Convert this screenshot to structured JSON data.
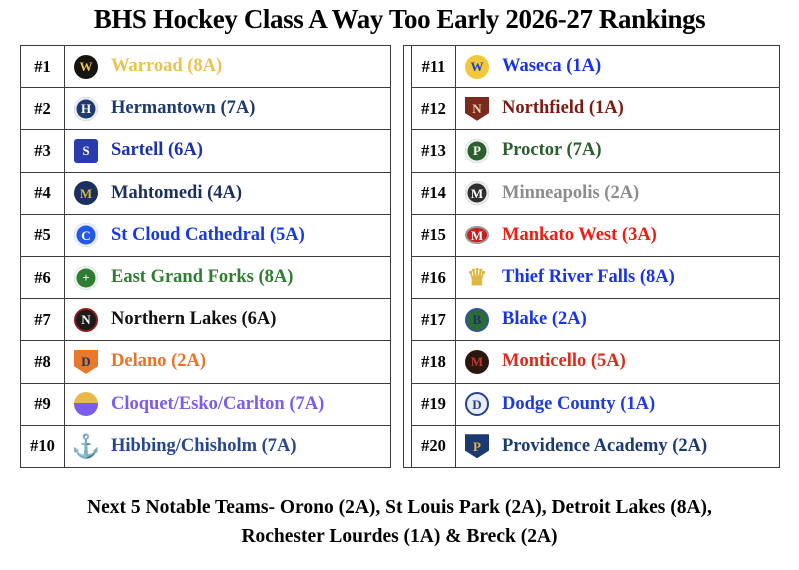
{
  "title": "BHS Hockey Class A Way Too Early 2026-27 Rankings",
  "footer": {
    "line1": "Next 5 Notable Teams- Orono (2A), St Louis Park (2A), Detroit Lakes (8A),",
    "line2": "Rochester Lourdes (1A) & Breck (2A)"
  },
  "colors": {
    "table_border": "#3d3d3d",
    "background": "#ffffff",
    "rank_text": "#000000"
  },
  "rankings": {
    "left": [
      {
        "rank": "#1",
        "team": "Warroad (8A)",
        "color": "#ECC24E",
        "logo": {
          "name": "warroad-warrior-logo",
          "shape": "circle",
          "bg": "#171310",
          "fg": "#ECC24E",
          "text": "W"
        }
      },
      {
        "rank": "#2",
        "team": "Hermantown (7A)",
        "color": "#1E3A6E",
        "logo": {
          "name": "hermantown-hawks-logo",
          "shape": "circle",
          "bg": "#1E3A6E",
          "fg": "#ffffff",
          "text": "H",
          "ring": true
        }
      },
      {
        "rank": "#3",
        "team": "Sartell (6A)",
        "color": "#1B2FB5",
        "logo": {
          "name": "sartell-sabres-logo",
          "shape": "square",
          "bg": "#2A3BAE",
          "fg": "#ffffff",
          "text": "S"
        }
      },
      {
        "rank": "#4",
        "team": "Mahtomedi (4A)",
        "color": "#1B305E",
        "logo": {
          "name": "mahtomedi-zephyrs-logo",
          "shape": "circle",
          "bg": "#1B305E",
          "fg": "#D8B44A",
          "text": "M"
        }
      },
      {
        "rank": "#5",
        "team": "St Cloud Cathedral (5A)",
        "color": "#1837E8",
        "logo": {
          "name": "st-cloud-cathedral-crusaders-logo",
          "shape": "circle",
          "bg": "#2458E8",
          "fg": "#ffffff",
          "text": "C",
          "ring": true
        }
      },
      {
        "rank": "#6",
        "team": "East Grand Forks (8A)",
        "color": "#2E7D33",
        "logo": {
          "name": "east-grand-forks-green-wave-logo",
          "shape": "circle",
          "bg": "#2E7D33",
          "fg": "#ffffff",
          "text": "+",
          "ring": true
        }
      },
      {
        "rank": "#7",
        "team": "Northern Lakes (6A)",
        "color": "#111111",
        "logo": {
          "name": "northern-lakes-lightning-logo",
          "shape": "circle",
          "bg": "#1c1a1a",
          "fg": "#ffffff",
          "text": "N",
          "border": "#8C1B1B"
        }
      },
      {
        "rank": "#8",
        "team": "Delano (2A)",
        "color": "#E8742A",
        "logo": {
          "name": "delano-tigers-shield-logo",
          "shape": "shield",
          "bg": "#E8792B",
          "fg": "#1C3461",
          "text": "D"
        }
      },
      {
        "rank": "#9",
        "team": "Cloquet/Esko/Carlton (7A)",
        "color": "#7C5CE8",
        "logo": {
          "name": "cloquet-esko-carlton-lumberjacks-logo",
          "shape": "circle",
          "bg": "#E8B84B",
          "bg2": "#7C5CE8",
          "fg": "#ffffff",
          "text": ""
        }
      },
      {
        "rank": "#10",
        "team": "Hibbing/Chisholm (7A)",
        "color": "#27478F",
        "logo": {
          "name": "hibbing-chisholm-bluejackets-anchor-logo",
          "shape": "glyph",
          "bg": "",
          "fg": "#27478F",
          "text": "⚓"
        }
      }
    ],
    "right": [
      {
        "rank": "#11",
        "team": "Waseca (1A)",
        "color": "#1733E8",
        "logo": {
          "name": "waseca-bluejays-logo",
          "shape": "circle",
          "bg": "#F2C83B",
          "fg": "#1B3FD0",
          "text": "W"
        }
      },
      {
        "rank": "#12",
        "team": "Northfield (1A)",
        "color": "#7B1A14",
        "logo": {
          "name": "northfield-raiders-shield-logo",
          "shape": "shield",
          "bg": "#7B2A1E",
          "fg": "#E8D5A0",
          "text": "N"
        }
      },
      {
        "rank": "#13",
        "team": "Proctor (7A)",
        "color": "#2D5E2D",
        "logo": {
          "name": "proctor-rails-logo",
          "shape": "circle",
          "bg": "#2D5E2D",
          "fg": "#ffffff",
          "text": "P",
          "ring": true
        }
      },
      {
        "rank": "#14",
        "team": "Minneapolis (2A)",
        "color": "#8C8C8C",
        "logo": {
          "name": "minneapolis-hockey-logo",
          "shape": "circle",
          "bg": "#2E2E2E",
          "fg": "#ffffff",
          "text": "M",
          "ring": true
        }
      },
      {
        "rank": "#15",
        "team": "Mankato West (3A)",
        "color": "#F21B12",
        "logo": {
          "name": "mankato-west-scarlets-logo",
          "shape": "oval",
          "bg": "#C81E1E",
          "fg": "#ffffff",
          "text": "M",
          "border": "#999999"
        }
      },
      {
        "rank": "#16",
        "team": "Thief River Falls (8A)",
        "color": "#1733F0",
        "logo": {
          "name": "thief-river-falls-prowlers-crown-logo",
          "shape": "glyph",
          "bg": "",
          "fg": "#E0B63E",
          "text": "♛"
        }
      },
      {
        "rank": "#17",
        "team": "Blake (2A)",
        "color": "#1733F0",
        "logo": {
          "name": "blake-bears-logo",
          "shape": "circle",
          "bg": "#2E6B34",
          "fg": "#16346B",
          "text": "B",
          "border": "#2F54A0"
        }
      },
      {
        "rank": "#18",
        "team": "Monticello (5A)",
        "color": "#DE2A1E",
        "logo": {
          "name": "monticello-moose-logo",
          "shape": "circle",
          "bg": "#2A1810",
          "fg": "#C0392B",
          "text": "M"
        }
      },
      {
        "rank": "#19",
        "team": "Dodge County (1A)",
        "color": "#1F3BD9",
        "logo": {
          "name": "dodge-county-wildcats-logo",
          "shape": "circle",
          "bg": "#E8ECF4",
          "fg": "#24408E",
          "text": "D",
          "border": "#24408E"
        }
      },
      {
        "rank": "#20",
        "team": "Providence Academy (2A)",
        "color": "#1D3A70",
        "logo": {
          "name": "providence-academy-lions-shield-logo",
          "shape": "shield",
          "bg": "#1D3A70",
          "fg": "#D8B44A",
          "text": "P"
        }
      }
    ]
  }
}
